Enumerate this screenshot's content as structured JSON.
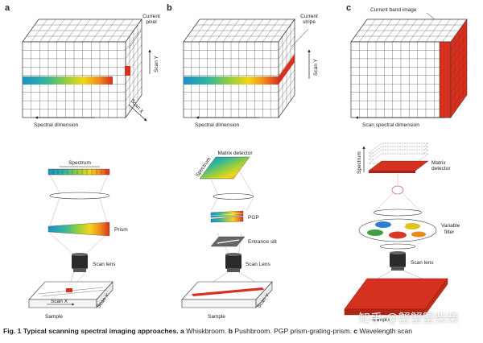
{
  "panels": {
    "a": {
      "letter": "a",
      "cube_label": "Current pixel",
      "scan_y": "Scan Y",
      "scan_x": "Scan X",
      "dimension": "Spectral dimension",
      "detector": "Spectrum",
      "element": "Prism",
      "lens": "Scan lens",
      "sample_scan": "Scan X",
      "sample_side": "Scan Y",
      "sample": "Sample"
    },
    "b": {
      "letter": "b",
      "cube_label": "Current stripe",
      "scan_y": "Scan Y",
      "dimension": "Spectral dimension",
      "detector": "Matrix detector",
      "detector_axis": "Spectrum",
      "element": "PGP",
      "slit": "Entrance slit",
      "lens": "Scan Lens",
      "sample_side": "Scan Y",
      "sample": "Sample"
    },
    "c": {
      "letter": "c",
      "cube_label": "Current band image",
      "dimension": "Scan spectral dimension",
      "detector": "Matrix detector",
      "detector_axis": "Spectrum",
      "element": "Variable filter",
      "lens": "Scan lens",
      "sample": "Sample"
    }
  },
  "caption": {
    "label": "Fig. 1",
    "title": "Typical scanning spectral imaging approaches.",
    "a_key": "a",
    "a_text": "Whiskbroom.",
    "b_key": "b",
    "b_text": "Pushbroom. PGP prism-grating-prism.",
    "c_key": "c",
    "c_text": "Wavelength scan"
  },
  "watermark": "知乎 @蟹蟹蟹柴柴",
  "colors": {
    "accent_red": "#d6311f",
    "spectrum": [
      "#1f8fc9",
      "#2fb5a0",
      "#8fcf3c",
      "#f2d51d",
      "#f08a1b",
      "#d6311f"
    ],
    "filter_disks": [
      "#2a7fd1",
      "#e0c21a",
      "#3aa043",
      "#d63a2a",
      "#e88a1c"
    ]
  }
}
